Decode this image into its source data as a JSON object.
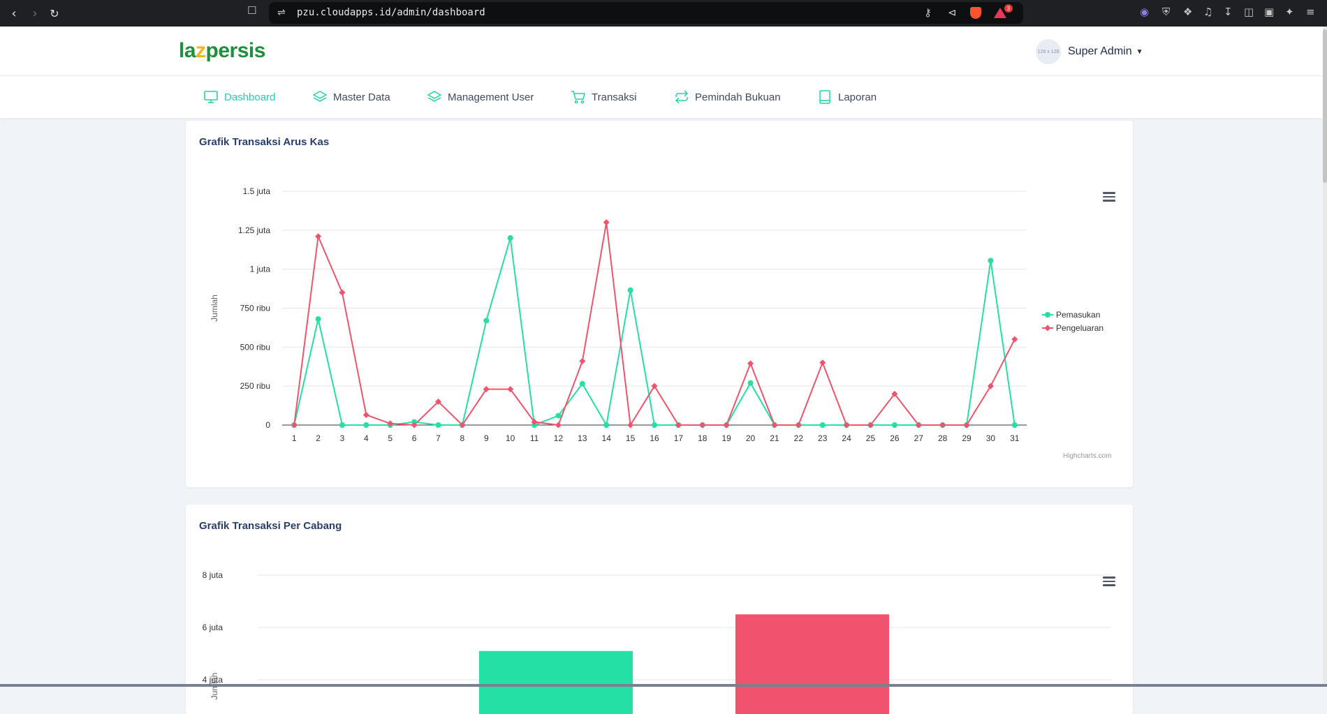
{
  "browser": {
    "url": "pzu.cloudapps.id/admin/dashboard",
    "alert_count": "3"
  },
  "app": {
    "logo": {
      "prefix": "la",
      "highlight": "z",
      "suffix": "persis"
    },
    "user": {
      "avatar_text": "128 x 128",
      "name": "Super Admin"
    }
  },
  "menu": [
    {
      "label": "Dashboard",
      "icon": "monitor-icon",
      "active": true
    },
    {
      "label": "Master Data",
      "icon": "layers-icon"
    },
    {
      "label": "Management User",
      "icon": "layers-icon"
    },
    {
      "label": "Transaksi",
      "icon": "cart-icon"
    },
    {
      "label": "Pemindah Bukuan",
      "icon": "transfer-icon"
    },
    {
      "label": "Laporan",
      "icon": "book-icon"
    }
  ],
  "colors": {
    "green": "#24e0a4",
    "red": "#f0546c",
    "accent": "#1ed3a8"
  },
  "chart1": {
    "title": "Grafik Transaksi Arus Kas",
    "credit": "Highcharts.com"
  },
  "chart2": {
    "title": "Grafik Transaksi Per Cabang"
  },
  "chart_data": [
    {
      "type": "line",
      "title": "Grafik Transaksi Arus Kas",
      "ylabel": "Jumlah",
      "x": [
        1,
        2,
        3,
        4,
        5,
        6,
        7,
        8,
        9,
        10,
        11,
        12,
        13,
        14,
        15,
        16,
        17,
        18,
        19,
        20,
        21,
        22,
        23,
        24,
        25,
        26,
        27,
        28,
        29,
        30,
        31
      ],
      "yticks": [
        {
          "value": 0,
          "label": "0"
        },
        {
          "value": 250000,
          "label": "250 ribu"
        },
        {
          "value": 500000,
          "label": "500 ribu"
        },
        {
          "value": 750000,
          "label": "750 ribu"
        },
        {
          "value": 1000000,
          "label": "1 juta"
        },
        {
          "value": 1250000,
          "label": "1.25 juta"
        },
        {
          "value": 1500000,
          "label": "1.5 juta"
        }
      ],
      "ylim": [
        0,
        1500000
      ],
      "legend": "right",
      "series": [
        {
          "name": "Pemasukan",
          "color": "#24e0a4",
          "marker": "circle",
          "values": [
            0,
            680000,
            0,
            0,
            0,
            20000,
            0,
            0,
            670000,
            1200000,
            0,
            60000,
            265000,
            0,
            865000,
            0,
            0,
            0,
            0,
            270000,
            0,
            0,
            0,
            0,
            0,
            0,
            0,
            0,
            0,
            1055000,
            0
          ]
        },
        {
          "name": "Pengeluaran",
          "color": "#f0546c",
          "marker": "diamond",
          "values": [
            0,
            1210000,
            850000,
            65000,
            10000,
            0,
            150000,
            0,
            230000,
            230000,
            20000,
            0,
            410000,
            1300000,
            0,
            250000,
            0,
            0,
            0,
            395000,
            0,
            0,
            400000,
            0,
            0,
            200000,
            0,
            0,
            0,
            250000,
            550000
          ]
        }
      ]
    },
    {
      "type": "bar",
      "title": "Grafik Transaksi Per Cabang",
      "ylabel": "Jumlah",
      "yticks": [
        {
          "value": 4000000,
          "label": "4 juta"
        },
        {
          "value": 6000000,
          "label": "6 juta"
        },
        {
          "value": 8000000,
          "label": "8 juta"
        }
      ],
      "series": [
        {
          "color": "#24e0a4",
          "values": [
            5100000
          ]
        },
        {
          "color": "#f0546c",
          "values": [
            6500000
          ]
        }
      ]
    }
  ]
}
